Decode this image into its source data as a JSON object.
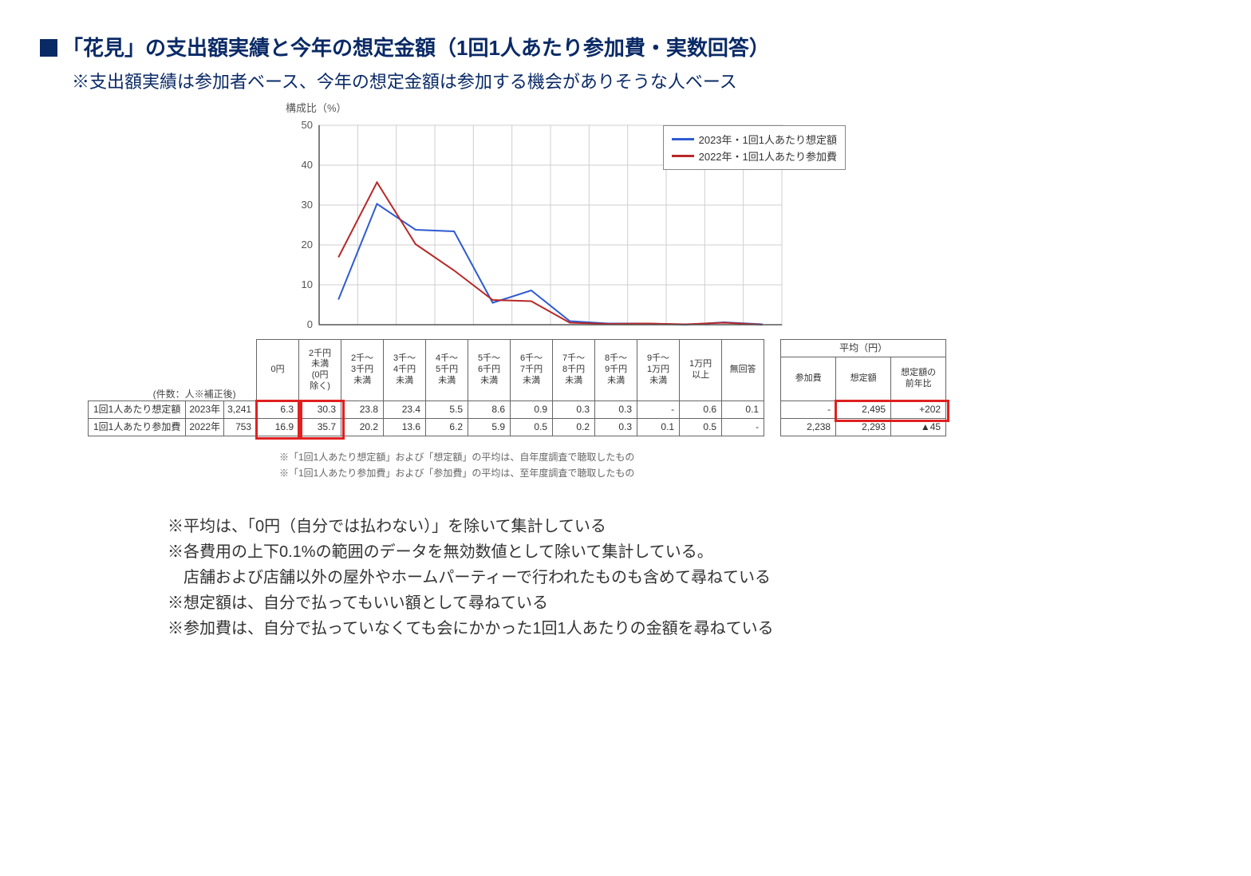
{
  "title": "「花見」の支出額実績と今年の想定金額（1回1人あたり参加費・実数回答）",
  "subtitle": "※支出額実績は参加者ベース、今年の想定金額は参加する機会がありそうな人ベース",
  "chart": {
    "type": "line",
    "ylabel": "構成比（%）",
    "ylim": [
      0,
      50
    ],
    "ytick_step": 10,
    "background_color": "#ffffff",
    "grid_color": "#cfcfcf",
    "axis_color": "#555555",
    "line_width": 2,
    "tick_fontsize": 13,
    "categories": [
      "0円",
      "2千円未満(0円除く)",
      "2千～3千円未満",
      "3千～4千円未満",
      "4千～5千円未満",
      "5千～6千円未満",
      "6千～7千円未満",
      "7千～8千円未満",
      "8千～9千円未満",
      "9千～1万円未満",
      "1万円以上",
      "無回答"
    ],
    "series": [
      {
        "name": "2023年・1回1人あたり想定額",
        "color": "#2f5bd0",
        "values": [
          6.3,
          30.3,
          23.8,
          23.4,
          5.5,
          8.6,
          0.9,
          0.3,
          0.3,
          0,
          0.6,
          0.1
        ]
      },
      {
        "name": "2022年・1回1人あたり参加費",
        "color": "#b82828",
        "values": [
          16.9,
          35.7,
          20.2,
          13.6,
          6.2,
          5.9,
          0.5,
          0.2,
          0.3,
          0.1,
          0.5,
          0
        ]
      }
    ]
  },
  "table_main": {
    "count_label": "(件数：人※補正後)",
    "category_headers": [
      "0円",
      "2千円\n未満\n(0円\n除く)",
      "2千～\n3千円\n未満",
      "3千～\n4千円\n未満",
      "4千～\n5千円\n未満",
      "5千～\n6千円\n未満",
      "6千～\n7千円\n未満",
      "7千～\n8千円\n未満",
      "8千～\n9千円\n未満",
      "9千～\n1万円\n未満",
      "1万円\n以上",
      "無回答"
    ],
    "rows": [
      {
        "label": "1回1人あたり想定額",
        "year": "2023年",
        "n": "3,241",
        "values": [
          "6.3",
          "30.3",
          "23.8",
          "23.4",
          "5.5",
          "8.6",
          "0.9",
          "0.3",
          "0.3",
          "-",
          "0.6",
          "0.1"
        ]
      },
      {
        "label": "1回1人あたり参加費",
        "year": "2022年",
        "n": "753",
        "values": [
          "16.9",
          "35.7",
          "20.2",
          "13.6",
          "6.2",
          "5.9",
          "0.5",
          "0.2",
          "0.3",
          "0.1",
          "0.5",
          "-"
        ]
      }
    ],
    "highlight_cols": [
      0,
      1
    ],
    "highlight_color": "#e02020"
  },
  "table_avg": {
    "group_header": "平均（円）",
    "headers": [
      "参加費",
      "想定額",
      "想定額の\n前年比"
    ],
    "rows": [
      [
        "-",
        "2,495",
        "+202"
      ],
      [
        "2,238",
        "2,293",
        "▲45"
      ]
    ],
    "highlight_row0_cols": [
      1,
      2
    ],
    "highlight_color": "#e02020"
  },
  "small_notes": [
    "※「1回1人あたり想定額」および「想定額」の平均は、自年度調査で聴取したもの",
    "※「1回1人あたり参加費」および「参加費」の平均は、至年度調査で聴取したもの"
  ],
  "footer_notes": [
    "※平均は、「0円（自分では払わない）」を除いて集計している",
    "※各費用の上下0.1%の範囲のデータを無効数値として除いて集計している。",
    "　店舗および店舗以外の屋外やホームパーティーで行われたものも含めて尋ねている",
    "※想定額は、自分で払ってもいい額として尋ねている",
    "※参加費は、自分で払っていなくても会にかかった1回1人あたりの金額を尋ねている"
  ]
}
